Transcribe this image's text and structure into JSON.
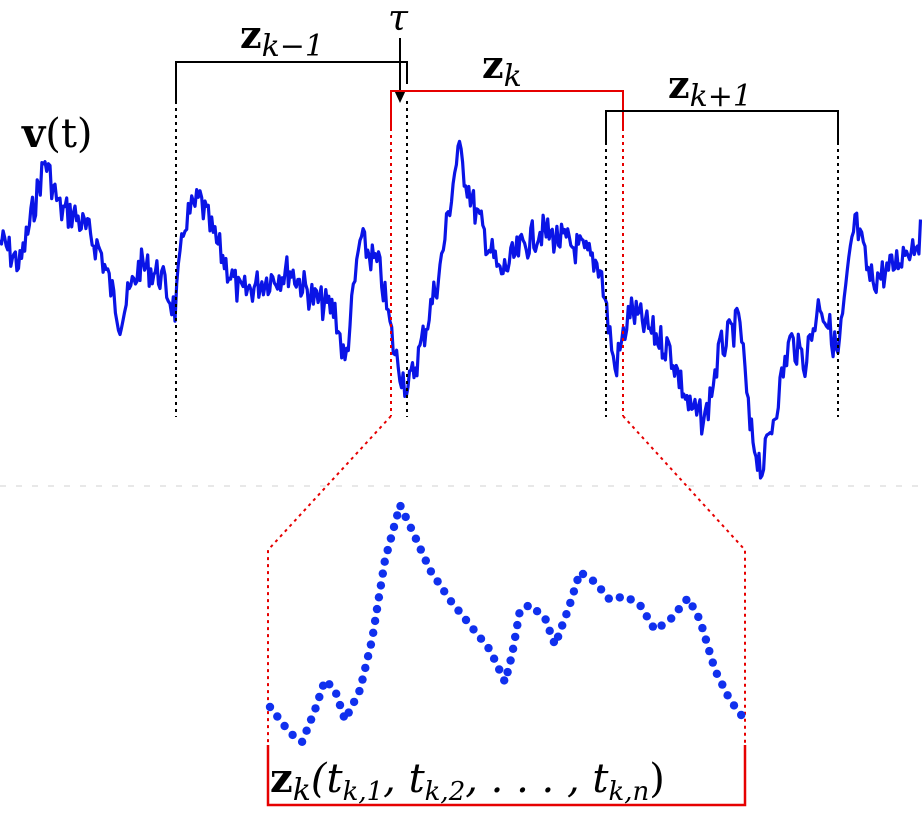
{
  "signal": {
    "label_bold": "v",
    "label_rest": "(t)",
    "color": "#0a14e6"
  },
  "windows": {
    "prev": {
      "bold": "z",
      "sub": "k−1"
    },
    "current": {
      "bold": "z",
      "sub": "k"
    },
    "next": {
      "bold": "z",
      "sub": "k+1"
    },
    "shift": "τ"
  },
  "zoom": {
    "bold": "z",
    "sub": "k",
    "args": "(t",
    "s1": "k,1",
    "mid1": ", t",
    "s2": "k,2",
    "mid2": ", . . . , t",
    "s3": "k,n",
    "end": ")"
  },
  "colors": {
    "highlight": "#e60000",
    "bracket": "#000000",
    "dots": "#1030ee"
  }
}
